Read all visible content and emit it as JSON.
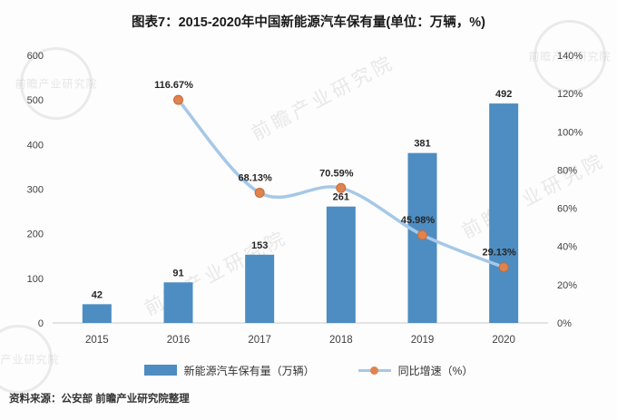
{
  "page": {
    "title": "图表7：2015-2020年中国新能源汽车保有量(单位：万辆，%)",
    "source": "资料来源：公安部 前瞻产业研究院整理",
    "watermark": "前瞻产业研究院"
  },
  "colors": {
    "bar": "#4d8dc1",
    "line": "#a6c8e8",
    "marker": "#e0834e",
    "marker_edge": "#c96a35",
    "axis_text": "#404040",
    "data_label": "#262626",
    "axis_line": "#c9c9c9"
  },
  "legend": [
    {
      "label": "新能源汽车保有量（万辆）",
      "type": "bar"
    },
    {
      "label": "同比增速（%）",
      "type": "line-marker"
    }
  ],
  "chart_data": {
    "type": "bar+line combo",
    "title": "图表7：2015-2020年中国新能源汽车保有量(单位：万辆，%)",
    "categories": [
      "2015",
      "2016",
      "2017",
      "2018",
      "2019",
      "2020"
    ],
    "series": [
      {
        "name": "新能源汽车保有量（万辆）",
        "type": "bar",
        "axis": "left",
        "values": [
          42,
          91,
          153,
          261,
          381,
          492
        ],
        "labels": [
          "42",
          "91",
          "153",
          "261",
          "381",
          "492"
        ]
      },
      {
        "name": "同比增速（%）",
        "type": "line",
        "axis": "right",
        "values": [
          null,
          116.67,
          68.13,
          70.59,
          45.98,
          29.13
        ],
        "labels": [
          "",
          "116.67%",
          "68.13%",
          "70.59%",
          "45.98%",
          "29.13%"
        ]
      }
    ],
    "left_axis": {
      "min": 0,
      "max": 600,
      "step": 100,
      "ticks": [
        "0",
        "100",
        "200",
        "300",
        "400",
        "500",
        "600"
      ]
    },
    "right_axis": {
      "min": 0,
      "max": 140,
      "step": 20,
      "ticks": [
        "0%",
        "20%",
        "40%",
        "60%",
        "80%",
        "100%",
        "120%",
        "140%"
      ]
    },
    "grid": false,
    "legend_position": "bottom"
  }
}
